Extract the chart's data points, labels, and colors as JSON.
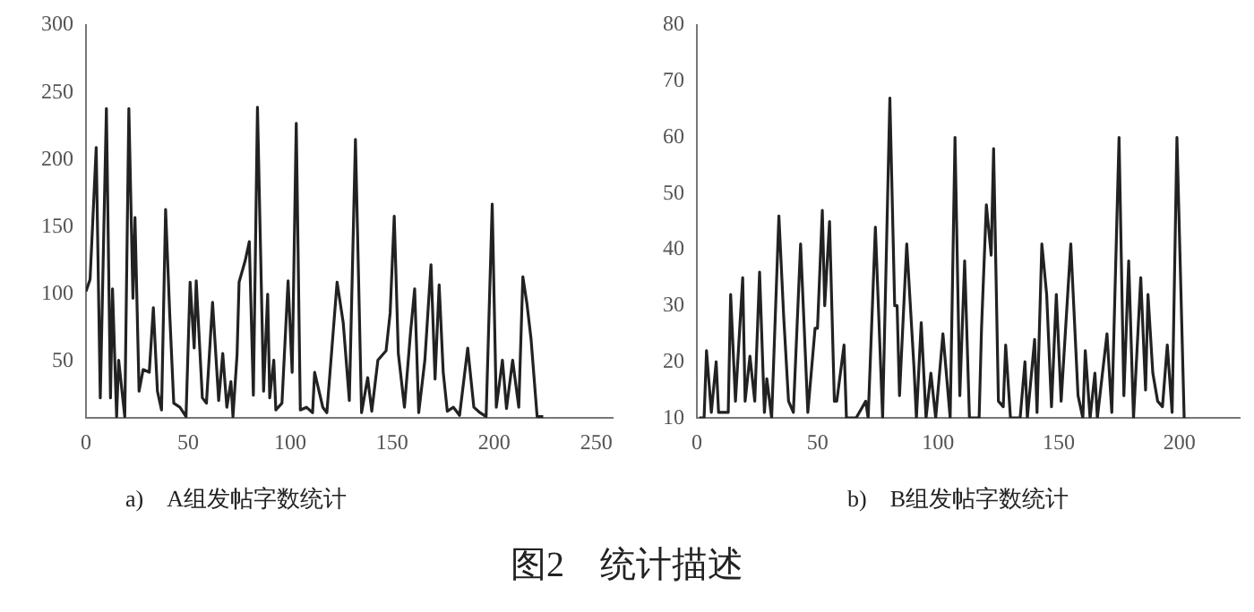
{
  "chart_data": [
    {
      "type": "line",
      "title": "图2　统计描述",
      "annotations": [
        "a)　A组发帖字数统计"
      ],
      "xlim": [
        0,
        258
      ],
      "xticks": [
        0,
        50,
        100,
        150,
        200,
        250
      ],
      "ylim": [
        8,
        300
      ],
      "yticks": [
        50,
        100,
        150,
        200,
        250,
        300
      ],
      "grid": false,
      "legend": false,
      "marker": "none",
      "line_style": "solid",
      "series": [
        {
          "color": "#222222",
          "x": [
            0,
            2,
            5,
            7,
            10,
            12,
            13,
            15,
            16,
            19,
            21,
            23,
            24,
            26,
            28,
            31,
            33,
            35,
            37,
            39,
            41,
            43,
            46,
            49,
            51,
            53,
            54,
            57,
            59,
            62,
            65,
            67,
            69,
            71,
            72,
            74,
            75,
            78,
            80,
            82,
            84,
            87,
            89,
            90,
            92,
            93,
            96,
            99,
            101,
            103,
            105,
            108,
            111,
            112,
            116,
            118,
            123,
            126,
            129,
            132,
            135,
            138,
            140,
            143,
            147,
            149,
            151,
            153,
            156,
            159,
            161,
            163,
            166,
            169,
            171,
            173,
            175,
            177,
            180,
            183,
            187,
            190,
            193,
            196,
            199,
            201,
            204,
            206,
            209,
            212,
            214,
            216,
            218,
            221,
            224
          ],
          "values": [
            102,
            111,
            209,
            23,
            238,
            23,
            104,
            9,
            51,
            9,
            238,
            97,
            157,
            28,
            44,
            42,
            90,
            28,
            14,
            163,
            86,
            19,
            16,
            9,
            109,
            60,
            110,
            23,
            19,
            94,
            21,
            56,
            16,
            35,
            9,
            55,
            109,
            125,
            139,
            25,
            239,
            28,
            100,
            23,
            51,
            14,
            19,
            110,
            42,
            227,
            14,
            16,
            12,
            42,
            16,
            12,
            109,
            79,
            21,
            215,
            12,
            38,
            13,
            51,
            58,
            86,
            158,
            56,
            16,
            72,
            104,
            12,
            51,
            122,
            37,
            107,
            42,
            13,
            16,
            10,
            60,
            16,
            12,
            9,
            167,
            16,
            51,
            15,
            51,
            16,
            113,
            93,
            67,
            9,
            9
          ]
        }
      ]
    },
    {
      "type": "line",
      "annotations": [
        "b)　B组发帖字数统计"
      ],
      "xlim": [
        0,
        225
      ],
      "xticks": [
        0,
        50,
        100,
        150,
        200
      ],
      "ylim": [
        10,
        80
      ],
      "yticks": [
        10,
        20,
        30,
        40,
        50,
        60,
        70,
        80
      ],
      "grid": false,
      "legend": false,
      "marker": "none",
      "line_style": "solid",
      "series": [
        {
          "color": "#222222",
          "x": [
            1,
            3,
            4,
            6,
            8,
            9,
            11,
            13,
            14,
            16,
            19,
            20,
            22,
            24,
            26,
            28,
            29,
            31,
            34,
            36,
            38,
            40,
            43,
            46,
            49,
            50,
            52,
            53,
            55,
            57,
            58,
            61,
            62,
            66,
            70,
            71,
            74,
            77,
            80,
            82,
            83,
            84,
            87,
            90,
            91,
            93,
            95,
            97,
            99,
            102,
            105,
            107,
            109,
            111,
            113,
            117,
            118,
            120,
            122,
            123,
            125,
            127,
            128,
            130,
            134,
            136,
            137,
            140,
            141,
            143,
            145,
            147,
            149,
            151,
            155,
            158,
            160,
            161,
            163,
            165,
            166,
            170,
            172,
            175,
            177,
            179,
            181,
            184,
            186,
            187,
            189,
            191,
            193,
            195,
            197,
            199,
            202
          ],
          "values": [
            10,
            10,
            22,
            11,
            20,
            11,
            11,
            11,
            32,
            13,
            35,
            13,
            21,
            13,
            36,
            11,
            17,
            10,
            46,
            28,
            13,
            11,
            41,
            11,
            26,
            26,
            47,
            30,
            45,
            13,
            13,
            23,
            10,
            10,
            13,
            10,
            44,
            10,
            67,
            30,
            30,
            14,
            41,
            19,
            10,
            27,
            10,
            18,
            10,
            25,
            10,
            60,
            14,
            38,
            10,
            10,
            26,
            48,
            39,
            58,
            13,
            12,
            23,
            10,
            10,
            20,
            10,
            24,
            11,
            41,
            32,
            12,
            32,
            13,
            41,
            14,
            10,
            22,
            10,
            18,
            10,
            25,
            11,
            60,
            14,
            38,
            10,
            35,
            15,
            32,
            18,
            13,
            12,
            23,
            11,
            60,
            10
          ]
        }
      ]
    }
  ]
}
